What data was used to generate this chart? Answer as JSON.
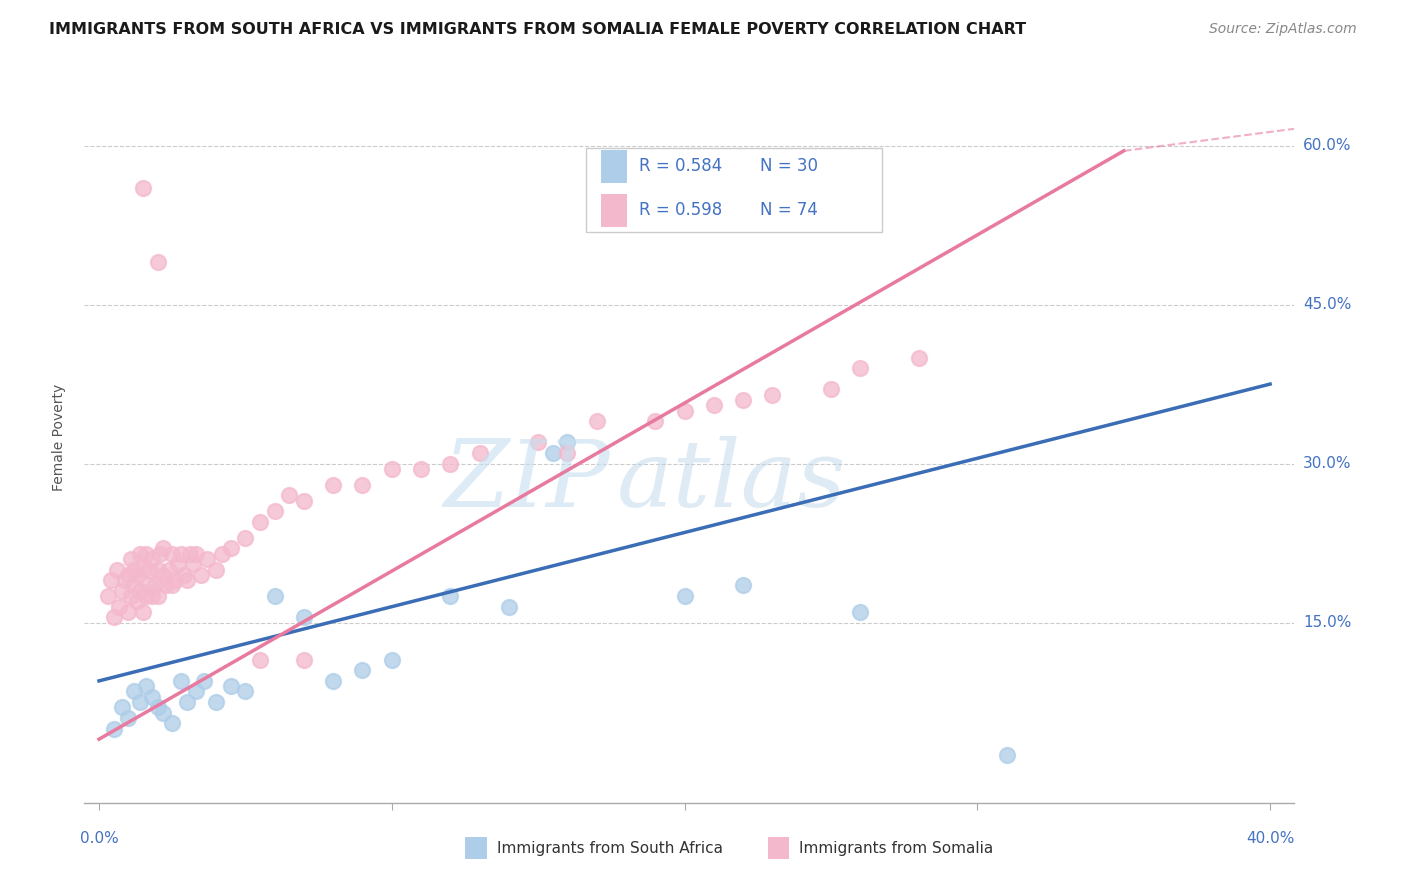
{
  "title": "IMMIGRANTS FROM SOUTH AFRICA VS IMMIGRANTS FROM SOMALIA FEMALE POVERTY CORRELATION CHART",
  "source": "Source: ZipAtlas.com",
  "ylabel": "Female Poverty",
  "ytick_vals": [
    0.15,
    0.3,
    0.45,
    0.6
  ],
  "ytick_labels": [
    "15.0%",
    "30.0%",
    "45.0%",
    "60.0%"
  ],
  "xlim": [
    0.0,
    0.4
  ],
  "ylim": [
    0.0,
    0.65
  ],
  "legend_r1": "R = 0.584",
  "legend_n1": "N = 30",
  "legend_r2": "R = 0.598",
  "legend_n2": "N = 74",
  "color_blue": "#aecde8",
  "color_pink": "#f4b8cc",
  "color_blue_line": "#3a6db5",
  "color_pink_line": "#e87aa0",
  "watermark_zip": "ZIP",
  "watermark_atlas": "atlas",
  "sa_line_x0": 0.0,
  "sa_line_y0": 0.095,
  "sa_line_x1": 0.4,
  "sa_line_y1": 0.375,
  "so_line_x0": 0.0,
  "so_line_y0": 0.04,
  "so_line_x1": 0.35,
  "so_line_y1": 0.595,
  "south_africa_x": [
    0.005,
    0.008,
    0.01,
    0.012,
    0.014,
    0.016,
    0.018,
    0.02,
    0.022,
    0.025,
    0.028,
    0.03,
    0.033,
    0.036,
    0.04,
    0.045,
    0.05,
    0.06,
    0.07,
    0.08,
    0.09,
    0.1,
    0.12,
    0.14,
    0.155,
    0.16,
    0.2,
    0.22,
    0.26,
    0.31
  ],
  "south_africa_y": [
    0.05,
    0.07,
    0.06,
    0.085,
    0.075,
    0.09,
    0.08,
    0.07,
    0.065,
    0.055,
    0.095,
    0.075,
    0.085,
    0.095,
    0.075,
    0.09,
    0.085,
    0.175,
    0.155,
    0.095,
    0.105,
    0.115,
    0.175,
    0.165,
    0.31,
    0.32,
    0.175,
    0.185,
    0.16,
    0.025
  ],
  "somalia_x": [
    0.003,
    0.004,
    0.005,
    0.006,
    0.007,
    0.008,
    0.009,
    0.01,
    0.01,
    0.011,
    0.011,
    0.012,
    0.012,
    0.013,
    0.013,
    0.014,
    0.014,
    0.015,
    0.015,
    0.016,
    0.016,
    0.017,
    0.017,
    0.018,
    0.018,
    0.019,
    0.02,
    0.02,
    0.021,
    0.022,
    0.022,
    0.023,
    0.024,
    0.025,
    0.025,
    0.026,
    0.027,
    0.028,
    0.029,
    0.03,
    0.031,
    0.032,
    0.033,
    0.035,
    0.037,
    0.04,
    0.042,
    0.045,
    0.05,
    0.055,
    0.06,
    0.065,
    0.07,
    0.08,
    0.09,
    0.1,
    0.11,
    0.12,
    0.13,
    0.15,
    0.16,
    0.17,
    0.19,
    0.2,
    0.21,
    0.22,
    0.23,
    0.25,
    0.26,
    0.28,
    0.02,
    0.015,
    0.055,
    0.07
  ],
  "somalia_y": [
    0.175,
    0.19,
    0.155,
    0.2,
    0.165,
    0.18,
    0.19,
    0.16,
    0.195,
    0.175,
    0.21,
    0.185,
    0.2,
    0.17,
    0.195,
    0.18,
    0.215,
    0.16,
    0.2,
    0.175,
    0.215,
    0.185,
    0.2,
    0.175,
    0.21,
    0.185,
    0.175,
    0.2,
    0.215,
    0.195,
    0.22,
    0.185,
    0.2,
    0.185,
    0.215,
    0.19,
    0.205,
    0.215,
    0.195,
    0.19,
    0.215,
    0.205,
    0.215,
    0.195,
    0.21,
    0.2,
    0.215,
    0.22,
    0.23,
    0.245,
    0.255,
    0.27,
    0.265,
    0.28,
    0.28,
    0.295,
    0.295,
    0.3,
    0.31,
    0.32,
    0.31,
    0.34,
    0.34,
    0.35,
    0.355,
    0.36,
    0.365,
    0.37,
    0.39,
    0.4,
    0.49,
    0.56,
    0.115,
    0.115
  ]
}
